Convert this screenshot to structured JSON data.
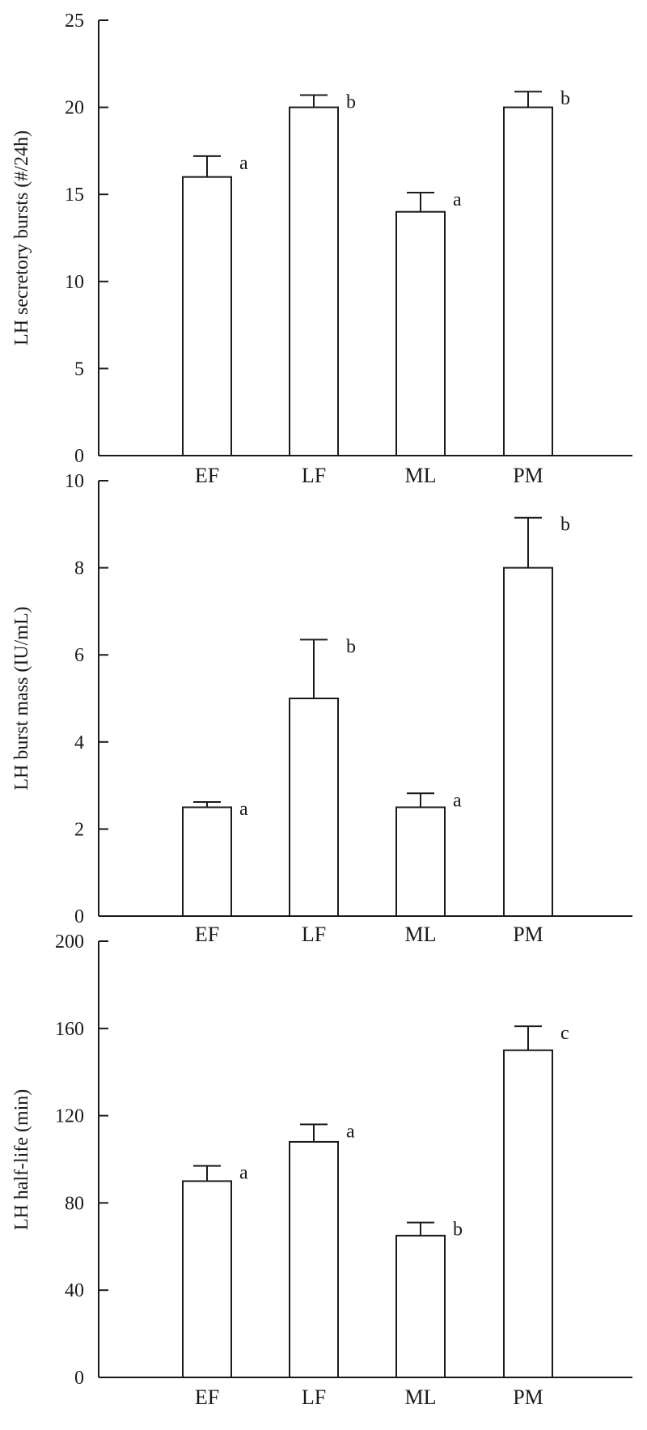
{
  "colors": {
    "ink": "#1a1a1a",
    "bar_fill": "#ffffff",
    "background": "#ffffff"
  },
  "chart_data": [
    {
      "type": "bar",
      "ylabel": "LH secretory bursts (#/24h)",
      "xlabel": "",
      "categories": [
        "EF",
        "LF",
        "ML",
        "PM"
      ],
      "values": [
        16,
        20,
        14,
        20
      ],
      "errors": [
        1.2,
        0.7,
        1.1,
        0.9
      ],
      "significance": [
        "a",
        "b",
        "a",
        "b"
      ],
      "ylim": [
        0,
        25
      ],
      "yticks": [
        0,
        5,
        10,
        15,
        20,
        25
      ],
      "grid": false
    },
    {
      "type": "bar",
      "ylabel": "LH burst mass (IU/mL)",
      "xlabel": "",
      "categories": [
        "EF",
        "LF",
        "ML",
        "PM"
      ],
      "values": [
        2.5,
        5.0,
        2.5,
        8.0
      ],
      "errors": [
        0.12,
        1.35,
        0.32,
        1.15
      ],
      "significance": [
        "a",
        "b",
        "a",
        "b"
      ],
      "ylim": [
        0,
        10
      ],
      "yticks": [
        0,
        2,
        4,
        6,
        8,
        10
      ],
      "grid": false
    },
    {
      "type": "bar",
      "ylabel": "LH half-life (min)",
      "xlabel": "",
      "categories": [
        "EF",
        "LF",
        "ML",
        "PM"
      ],
      "values": [
        90,
        108,
        65,
        150
      ],
      "errors": [
        7,
        8,
        6,
        11
      ],
      "significance": [
        "a",
        "a",
        "b",
        "c"
      ],
      "ylim": [
        0,
        200
      ],
      "yticks": [
        0,
        40,
        80,
        120,
        160,
        200
      ],
      "grid": false
    }
  ]
}
